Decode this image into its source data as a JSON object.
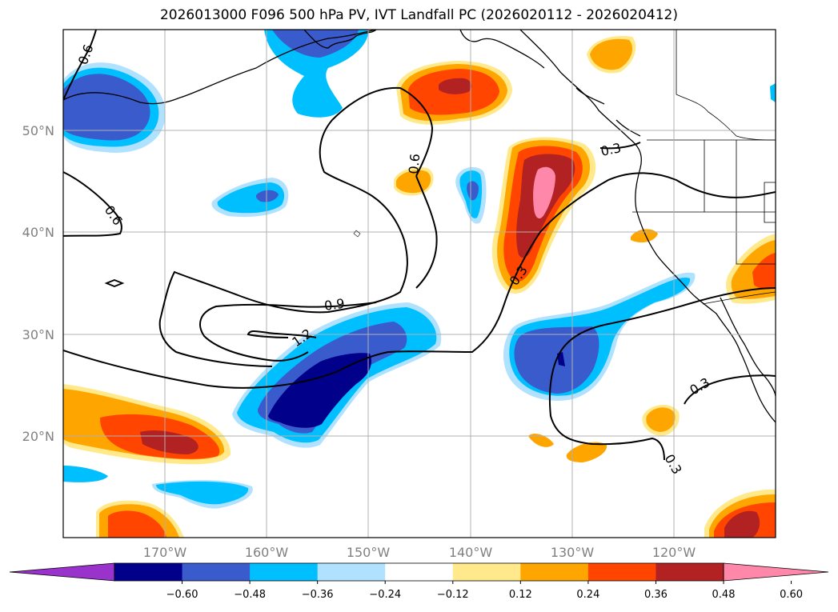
{
  "title": "2026013000 F096 500 hPa PV, IVT Landfall PC (2026020112 - 2026020412)",
  "map": {
    "lon_range": [
      -180,
      -110
    ],
    "lat_range": [
      10,
      60
    ],
    "lat_ticks": [
      {
        "value": 20,
        "label": "20°N"
      },
      {
        "value": 30,
        "label": "30°N"
      },
      {
        "value": 40,
        "label": "40°N"
      },
      {
        "value": 50,
        "label": "50°N"
      }
    ],
    "lon_ticks": [
      {
        "value": -170,
        "label": "170°W"
      },
      {
        "value": -160,
        "label": "160°W"
      },
      {
        "value": -150,
        "label": "150°W"
      },
      {
        "value": -140,
        "label": "140°W"
      },
      {
        "value": -130,
        "label": "130°W"
      },
      {
        "value": -120,
        "label": "120°W"
      }
    ],
    "grid": true
  },
  "colorbar": {
    "extend": "both",
    "bounds": [
      -0.72,
      -0.6,
      -0.48,
      -0.36,
      -0.24,
      -0.12,
      0.12,
      0.24,
      0.36,
      0.48,
      0.6,
      0.72
    ],
    "colors": [
      "#9933cc",
      "#00008b",
      "#3a5bcc",
      "#00bfff",
      "#b0e2ff",
      "#ffffff",
      "#ffe98a",
      "#ffa500",
      "#ff4500",
      "#b22222",
      "#ff88aa"
    ],
    "ticks": [
      "−0.60",
      "−0.48",
      "−0.36",
      "−0.24",
      "−0.12",
      "0.12",
      "0.24",
      "0.36",
      "0.48",
      "0.60"
    ]
  },
  "chart_data": {
    "type": "map",
    "shaded_field": [
      {
        "lon": -175,
        "lat": 52,
        "level": -0.36
      },
      {
        "lon": -151,
        "lat": 57,
        "level": -0.36
      },
      {
        "lon": -142,
        "lat": 55,
        "level": 0.48
      },
      {
        "lon": -147,
        "lat": 45,
        "level": 0.24
      },
      {
        "lon": -140,
        "lat": 43,
        "level": -0.36
      },
      {
        "lon": -160,
        "lat": 43,
        "level": -0.36
      },
      {
        "lon": -133,
        "lat": 43,
        "level": 0.6
      },
      {
        "lon": -150,
        "lat": 25,
        "level": -0.6
      },
      {
        "lon": -131,
        "lat": 28,
        "level": -0.48
      },
      {
        "lon": -171,
        "lat": 20,
        "level": 0.48
      },
      {
        "lon": -167,
        "lat": 14,
        "level": -0.24
      },
      {
        "lon": -173,
        "lat": 12,
        "level": 0.36
      },
      {
        "lon": -114,
        "lat": 12,
        "level": 0.48
      },
      {
        "lon": -113,
        "lat": 35,
        "level": 0.36
      },
      {
        "lon": -121,
        "lat": 22,
        "level": 0.24
      },
      {
        "lon": -129,
        "lat": 19,
        "level": 0.24
      },
      {
        "lon": -132,
        "lat": 58,
        "level": 0.24
      }
    ],
    "contour_labels": [
      "0.6",
      "0.6",
      "0.6",
      "0.9",
      "1.2",
      "0.3",
      "0.3",
      "0.3",
      "0.3"
    ]
  }
}
